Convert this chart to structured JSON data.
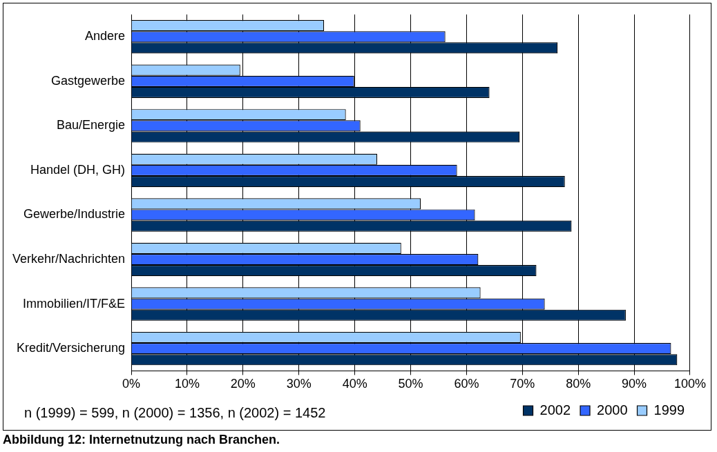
{
  "chart_data": {
    "type": "bar",
    "orientation": "horizontal",
    "title": "Abbildung 12: Internetnutzung nach Branchen.",
    "categories": [
      "Andere",
      "Gastgewerbe",
      "Bau/Energie",
      "Handel (DH, GH)",
      "Gewerbe/Industrie",
      "Verkehr/Nachrichten",
      "Immobilien/IT/F&E",
      "Kredit/Versicherung"
    ],
    "series": [
      {
        "name": "1999",
        "color": "#99ccff",
        "values": [
          34.5,
          19.5,
          38.4,
          44.0,
          51.8,
          48.3,
          62.5,
          69.7
        ]
      },
      {
        "name": "2000",
        "color": "#3366ff",
        "values": [
          56.2,
          39.9,
          41.0,
          58.3,
          61.5,
          62.1,
          74.0,
          96.6
        ]
      },
      {
        "name": "2002",
        "color": "#003366",
        "values": [
          76.3,
          64.1,
          69.5,
          77.6,
          78.8,
          72.5,
          88.5,
          97.7
        ]
      }
    ],
    "xlim": [
      0,
      100
    ],
    "xticks": [
      {
        "value": 0,
        "label": "0%"
      },
      {
        "value": 10,
        "label": "10%"
      },
      {
        "value": 20,
        "label": "20%"
      },
      {
        "value": 30,
        "label": "30%"
      },
      {
        "value": 40,
        "label": "40%"
      },
      {
        "value": 50,
        "label": "50%"
      },
      {
        "value": 60,
        "label": "60%"
      },
      {
        "value": 70,
        "label": "70%"
      },
      {
        "value": 80,
        "label": "80%"
      },
      {
        "value": 90,
        "label": "90%"
      },
      {
        "value": 100,
        "label": "100%"
      }
    ],
    "grid": "x",
    "legend": "bottom right",
    "annotations": [
      "n (1999) = 599, n (2000) = 1356, n (2002) = 1452"
    ]
  }
}
